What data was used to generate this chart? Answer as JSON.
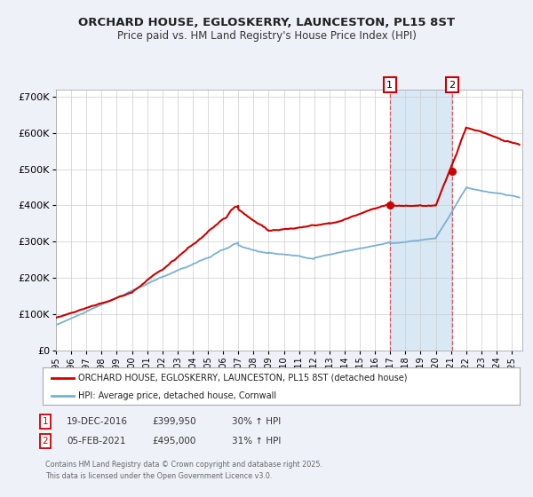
{
  "title_line1": "ORCHARD HOUSE, EGLOSKERRY, LAUNCESTON, PL15 8ST",
  "title_line2": "Price paid vs. HM Land Registry's House Price Index (HPI)",
  "ylim": [
    0,
    720000
  ],
  "yticks": [
    0,
    100000,
    200000,
    300000,
    400000,
    500000,
    600000,
    700000
  ],
  "ytick_labels": [
    "£0",
    "£100K",
    "£200K",
    "£300K",
    "£400K",
    "£500K",
    "£600K",
    "£700K"
  ],
  "xlim_start": 1995.0,
  "xlim_end": 2025.7,
  "xticks": [
    1995,
    1996,
    1997,
    1998,
    1999,
    2000,
    2001,
    2002,
    2003,
    2004,
    2005,
    2006,
    2007,
    2008,
    2009,
    2010,
    2011,
    2012,
    2013,
    2014,
    2015,
    2016,
    2017,
    2018,
    2019,
    2020,
    2021,
    2022,
    2023,
    2024,
    2025
  ],
  "line1_color": "#cc0000",
  "line2_color": "#7ab0d4",
  "bg_color": "#eef2f8",
  "plot_bg": "#ffffff",
  "shade_color": "#d8e8f4",
  "marker1_date": 2016.97,
  "marker2_date": 2021.09,
  "marker1_value": 399950,
  "marker2_value": 495000,
  "legend_label1": "ORCHARD HOUSE, EGLOSKERRY, LAUNCESTON, PL15 8ST (detached house)",
  "legend_label2": "HPI: Average price, detached house, Cornwall",
  "fn1_date": "19-DEC-2016",
  "fn1_price": "£399,950",
  "fn1_hpi": "30% ↑ HPI",
  "fn2_date": "05-FEB-2021",
  "fn2_price": "£495,000",
  "fn2_hpi": "31% ↑ HPI",
  "footnote3": "Contains HM Land Registry data © Crown copyright and database right 2025.",
  "footnote4": "This data is licensed under the Open Government Licence v3.0."
}
